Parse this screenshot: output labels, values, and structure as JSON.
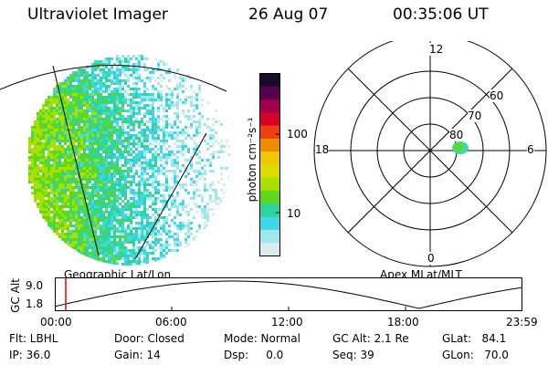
{
  "header": {
    "title": "Ultraviolet Imager",
    "date": "26 Aug 07",
    "time": "00:35:06 UT"
  },
  "colorbar": {
    "unit_label": "photon cm⁻²s⁻¹",
    "ticks": [
      "100",
      "10"
    ],
    "colors": [
      "#1a0a2e",
      "#5a0050",
      "#a0004a",
      "#d8002a",
      "#f04010",
      "#f08c00",
      "#f0c800",
      "#dcdc00",
      "#a8e000",
      "#5cd820",
      "#2cd4a0",
      "#40d8e8",
      "#9ce8ec",
      "#d8eeee"
    ]
  },
  "polar_plot": {
    "mlt_labels": [
      "12",
      "18",
      "6",
      "0"
    ],
    "lat_labels": [
      "60",
      "70",
      "80"
    ],
    "caption": "Apex MLat/MLT"
  },
  "geo_caption": "Geographic Lat/Lon",
  "timeline": {
    "ylabel": "GC Alt",
    "y_ticks": [
      "9.0",
      "1.8"
    ],
    "x_ticks": [
      "00:00",
      "06:00",
      "12:00",
      "18:00",
      "23:59"
    ],
    "marker_color": "#e00000"
  },
  "footer": {
    "flt": "Flt: LBHL",
    "ip": "IP: 36.0",
    "door": "Door: Closed",
    "gain": "Gain: 14",
    "mode": "Mode: Normal",
    "dsp": "Dsp:     0.0",
    "gcalt": "GC Alt: 2.1 Re",
    "seq": "Seq: 39",
    "glat": "GLat:   84.1",
    "glon": "GLon:   70.0"
  }
}
